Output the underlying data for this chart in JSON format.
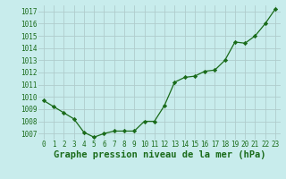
{
  "x": [
    0,
    1,
    2,
    3,
    4,
    5,
    6,
    7,
    8,
    9,
    10,
    11,
    12,
    13,
    14,
    15,
    16,
    17,
    18,
    19,
    20,
    21,
    22,
    23
  ],
  "y": [
    1009.7,
    1009.2,
    1008.7,
    1008.2,
    1007.1,
    1006.7,
    1007.0,
    1007.2,
    1007.2,
    1007.2,
    1008.0,
    1008.0,
    1009.3,
    1011.2,
    1011.6,
    1011.7,
    1012.1,
    1012.2,
    1013.0,
    1014.5,
    1014.4,
    1015.0,
    1016.0,
    1017.2
  ],
  "ylim_min": 1006.5,
  "ylim_max": 1017.5,
  "yticks": [
    1007,
    1008,
    1009,
    1010,
    1011,
    1012,
    1013,
    1014,
    1015,
    1016,
    1017
  ],
  "xticks": [
    0,
    1,
    2,
    3,
    4,
    5,
    6,
    7,
    8,
    9,
    10,
    11,
    12,
    13,
    14,
    15,
    16,
    17,
    18,
    19,
    20,
    21,
    22,
    23
  ],
  "line_color": "#1a6b1a",
  "marker": "D",
  "marker_size": 2.2,
  "bg_color": "#c8ecec",
  "grid_color": "#b0cccc",
  "xlabel": "Graphe pression niveau de la mer (hPa)",
  "xlabel_color": "#1a6b1a",
  "tick_color": "#1a6b1a",
  "tick_fontsize": 5.5,
  "xlabel_fontsize": 7.5,
  "linewidth": 0.9
}
